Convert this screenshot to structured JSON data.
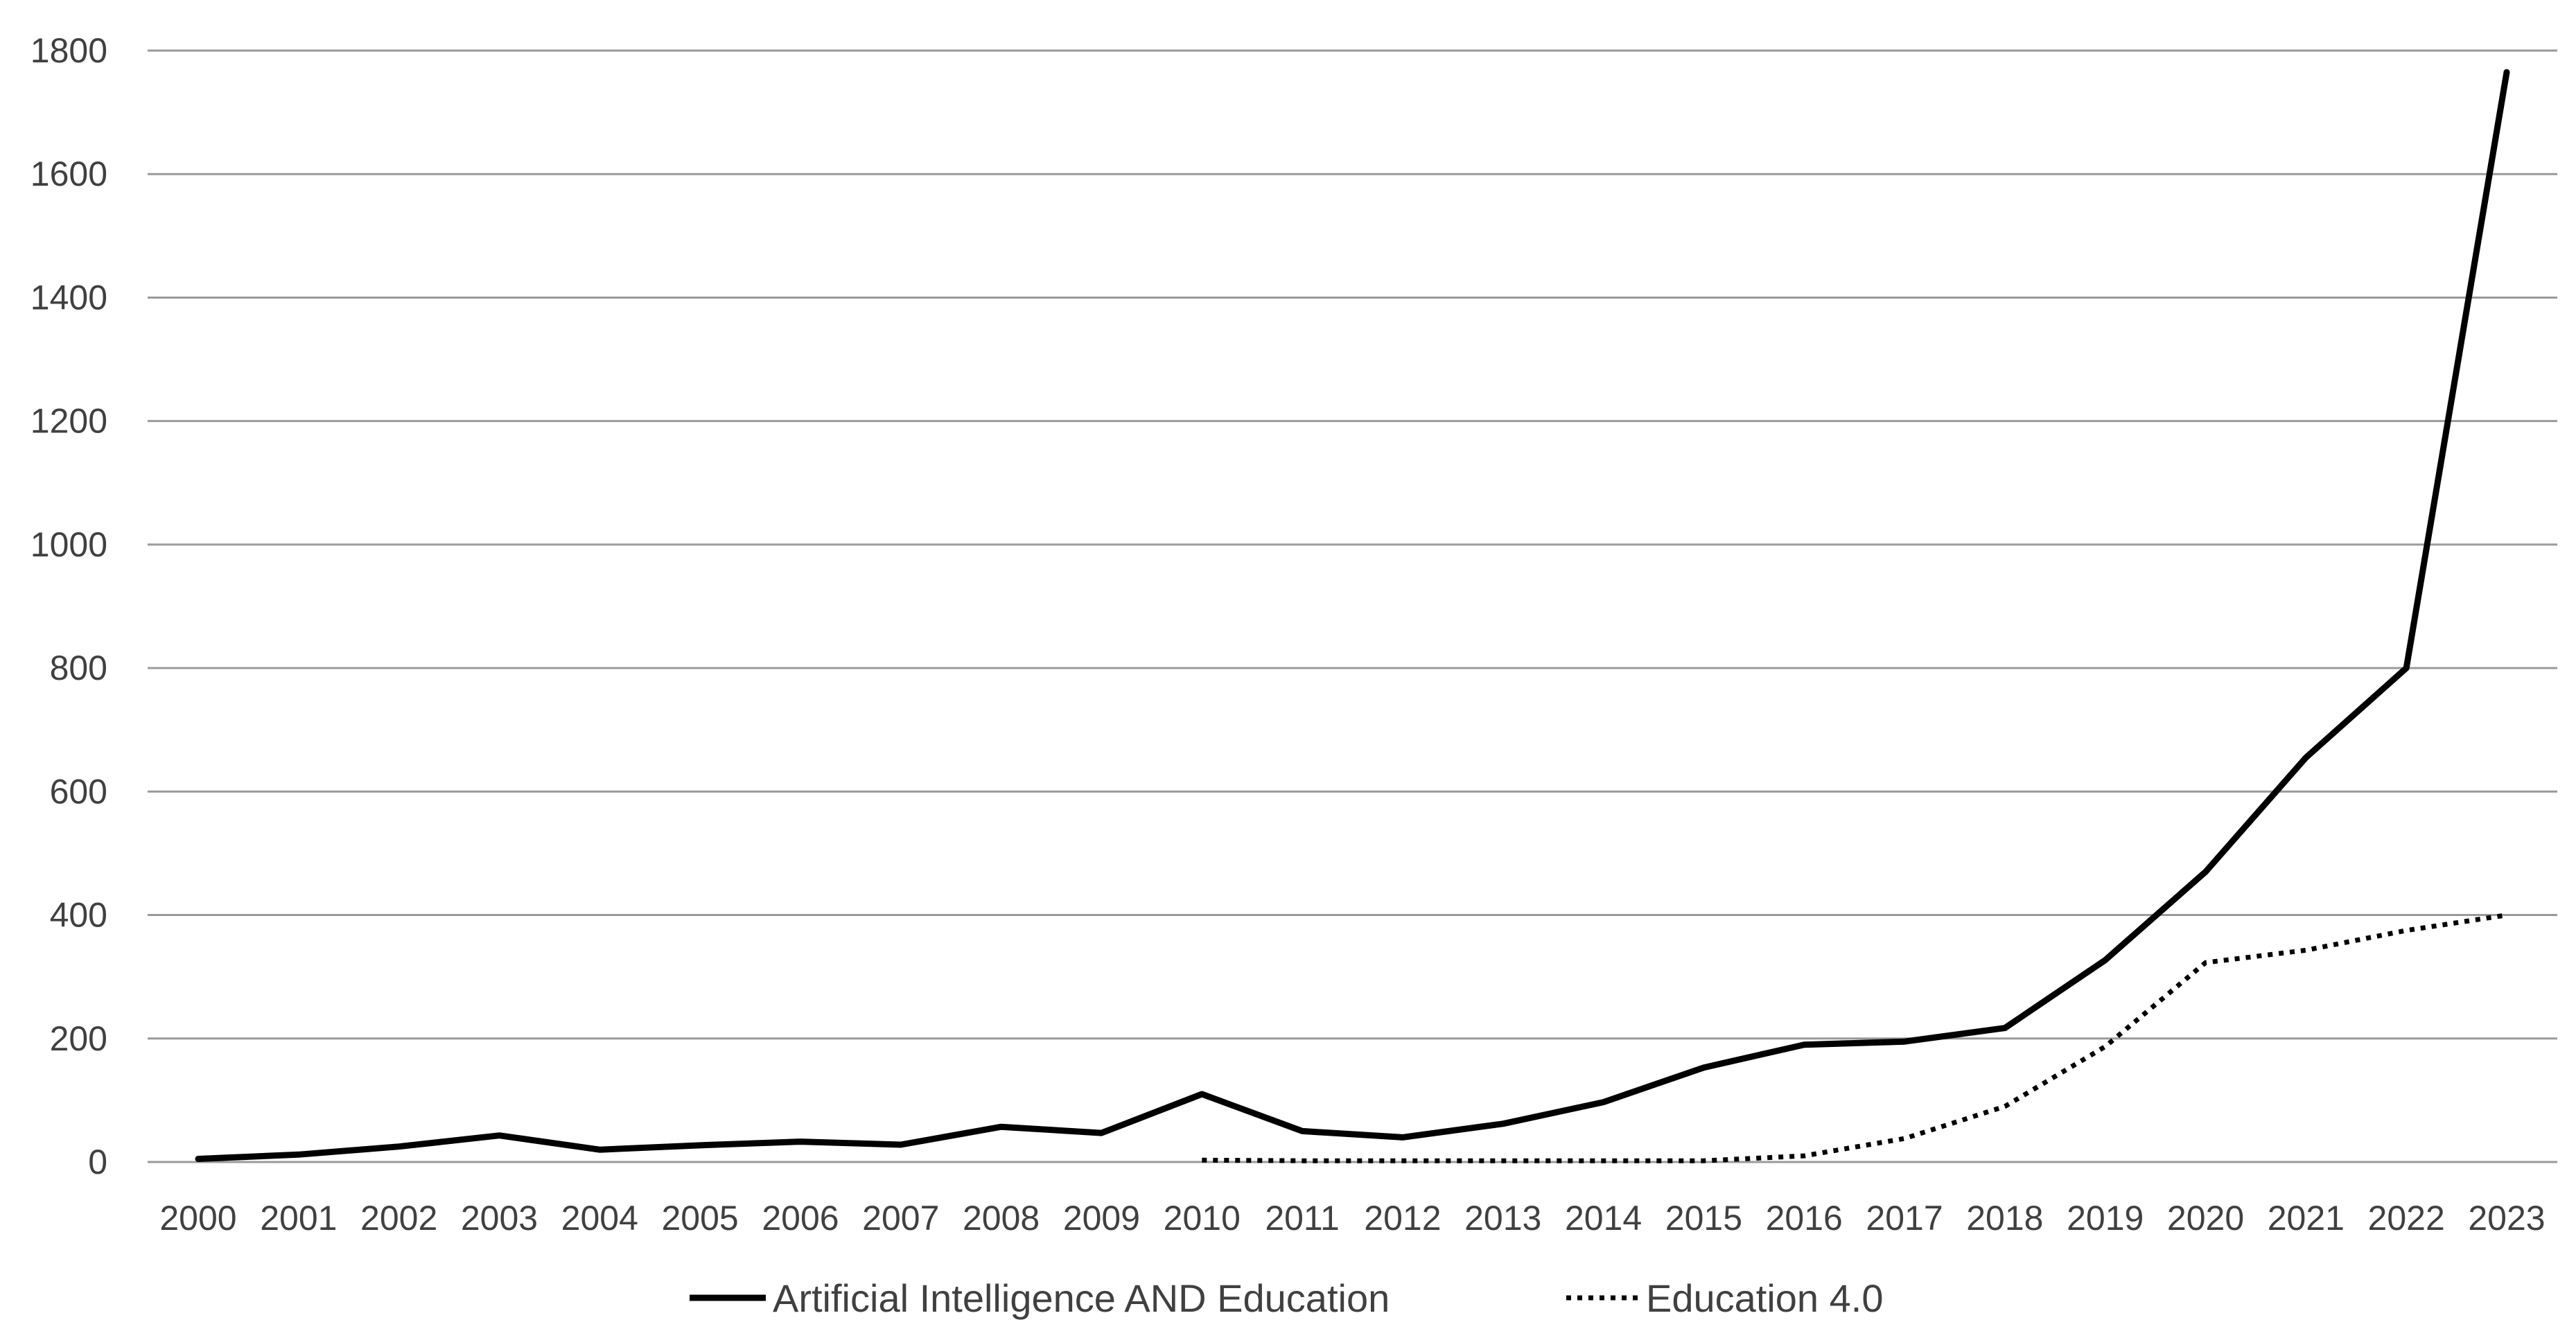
{
  "chart_data": {
    "type": "line",
    "title": "",
    "xlabel": "",
    "ylabel": "",
    "x": [
      "2000",
      "2001",
      "2002",
      "2003",
      "2004",
      "2005",
      "2006",
      "2007",
      "2008",
      "2009",
      "2010",
      "2011",
      "2012",
      "2013",
      "2014",
      "2015",
      "2016",
      "2017",
      "2018",
      "2019",
      "2020",
      "2021",
      "2022",
      "2023"
    ],
    "ylim": [
      0,
      1800
    ],
    "yticks": [
      0,
      200,
      400,
      600,
      800,
      1000,
      1200,
      1400,
      1600,
      1800
    ],
    "grid": true,
    "legend_position": "bottom",
    "series": [
      {
        "name": "Artificial Intelligence AND Education",
        "style": "solid",
        "color": "#000000",
        "values": [
          5,
          12,
          25,
          43,
          20,
          27,
          33,
          28,
          57,
          47,
          110,
          50,
          40,
          62,
          97,
          153,
          190,
          195,
          217,
          327,
          470,
          655,
          800,
          1765
        ]
      },
      {
        "name": "Education 4.0",
        "style": "dotted",
        "color": "#000000",
        "values": [
          null,
          null,
          null,
          null,
          null,
          null,
          null,
          null,
          null,
          null,
          3,
          2,
          2,
          2,
          2,
          2,
          10,
          38,
          90,
          187,
          323,
          343,
          375,
          400
        ]
      }
    ]
  }
}
